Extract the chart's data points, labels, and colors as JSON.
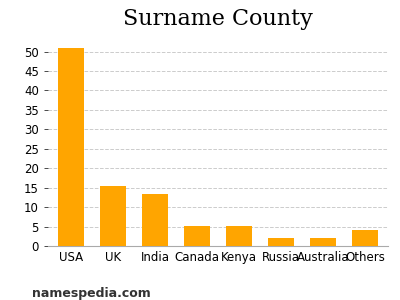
{
  "title": "Surname County",
  "categories": [
    "USA",
    "UK",
    "India",
    "Canada",
    "Kenya",
    "Russia",
    "Australia",
    "Others"
  ],
  "values": [
    51,
    15.5,
    13.5,
    5.2,
    5.2,
    2,
    2,
    4
  ],
  "bar_color": "#FFA500",
  "ylim": [
    0,
    54
  ],
  "yticks": [
    0,
    5,
    10,
    15,
    20,
    25,
    30,
    35,
    40,
    45,
    50
  ],
  "grid_color": "#cccccc",
  "background_color": "#ffffff",
  "title_fontsize": 16,
  "tick_fontsize": 8.5,
  "footer_text": "namespedia.com",
  "footer_fontsize": 9,
  "bar_width": 0.6
}
